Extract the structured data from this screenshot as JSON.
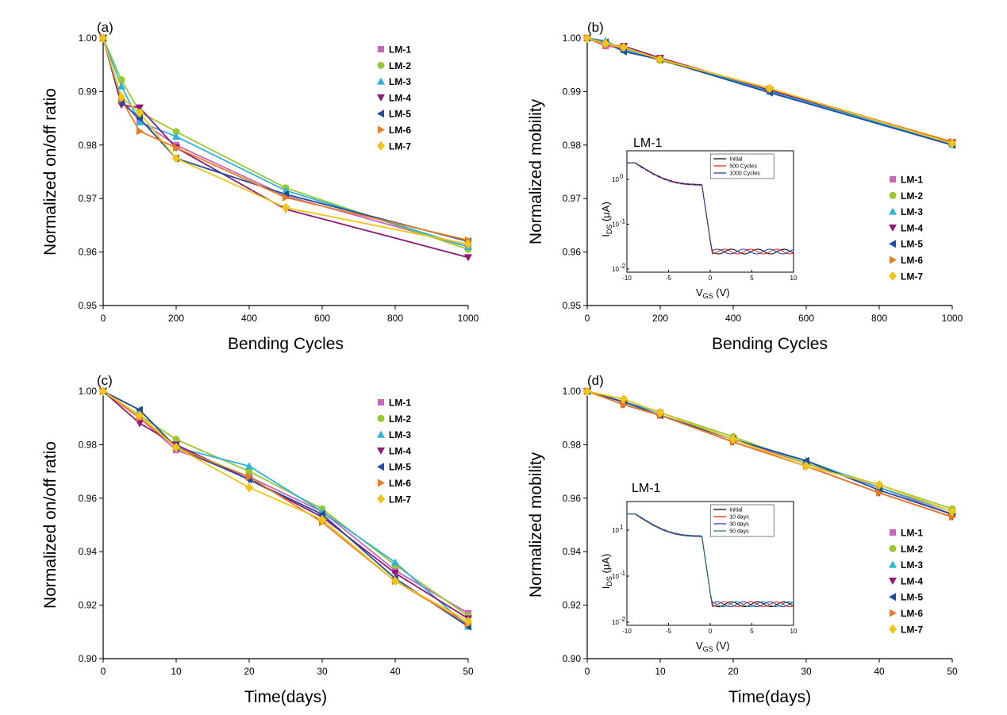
{
  "colors": {
    "LM-1": "#c767b8",
    "LM-2": "#9ac832",
    "LM-3": "#2bb3dd",
    "LM-4": "#8b1a7a",
    "LM-5": "#1f4f9c",
    "LM-6": "#e87c25",
    "LM-7": "#f0c419",
    "inset_lines": [
      "#000000",
      "#e8201a",
      "#1f3b9c",
      "#1f6f8f"
    ]
  },
  "chart_data": [
    {
      "panel": "(a)",
      "type": "line",
      "xlabel": "Bending Cycles",
      "ylabel": "Normalized on/off ratio",
      "xlim": [
        0,
        1000
      ],
      "ylim": [
        0.95,
        1.0
      ],
      "xticks": [
        0,
        200,
        400,
        600,
        800,
        1000
      ],
      "yticks": [
        "0.95",
        "0.96",
        "0.97",
        "0.98",
        "0.99",
        "1.00"
      ],
      "x": [
        0,
        50,
        100,
        200,
        500,
        1000
      ],
      "legend": "top-right",
      "series": [
        {
          "name": "LM-1",
          "marker": "square",
          "values": [
            1.0,
            0.9885,
            0.9845,
            0.98,
            0.9705,
            0.961
          ]
        },
        {
          "name": "LM-2",
          "marker": "circle",
          "values": [
            1.0,
            0.9922,
            0.9862,
            0.9825,
            0.972,
            0.9605
          ]
        },
        {
          "name": "LM-3",
          "marker": "triangle-up",
          "values": [
            1.0,
            0.991,
            0.9843,
            0.9816,
            0.9715,
            0.961
          ]
        },
        {
          "name": "LM-4",
          "marker": "triangle-down",
          "values": [
            1.0,
            0.9875,
            0.987,
            0.9795,
            0.968,
            0.959
          ]
        },
        {
          "name": "LM-5",
          "marker": "triangle-left",
          "values": [
            1.0,
            0.988,
            0.985,
            0.9775,
            0.9708,
            0.962
          ]
        },
        {
          "name": "LM-6",
          "marker": "triangle-right",
          "values": [
            1.0,
            0.9885,
            0.9826,
            0.9795,
            0.9702,
            0.9622
          ]
        },
        {
          "name": "LM-7",
          "marker": "diamond",
          "values": [
            1.0,
            0.989,
            0.986,
            0.9775,
            0.9683,
            0.9615
          ]
        }
      ]
    },
    {
      "panel": "(b)",
      "type": "line",
      "xlabel": "Bending Cycles",
      "ylabel": "Normalized mobility",
      "xlim": [
        0,
        1000
      ],
      "ylim": [
        0.95,
        1.0
      ],
      "xticks": [
        0,
        200,
        400,
        600,
        800,
        1000
      ],
      "yticks": [
        "0.95",
        "0.96",
        "0.97",
        "0.98",
        "0.99",
        "1.00"
      ],
      "x": [
        0,
        50,
        100,
        200,
        500,
        1000
      ],
      "legend": "right",
      "series": [
        {
          "name": "LM-1",
          "marker": "square",
          "values": [
            1.0,
            0.9985,
            0.9982,
            0.9962,
            0.9902,
            0.9803
          ]
        },
        {
          "name": "LM-2",
          "marker": "circle",
          "values": [
            1.0,
            0.999,
            0.998,
            0.9958,
            0.9905,
            0.98
          ]
        },
        {
          "name": "LM-3",
          "marker": "triangle-up",
          "values": [
            1.0,
            0.9995,
            0.9978,
            0.9962,
            0.99,
            0.9802
          ]
        },
        {
          "name": "LM-4",
          "marker": "triangle-down",
          "values": [
            1.0,
            0.9988,
            0.9985,
            0.9963,
            0.9903,
            0.9805
          ]
        },
        {
          "name": "LM-5",
          "marker": "triangle-left",
          "values": [
            1.0,
            0.9992,
            0.9975,
            0.996,
            0.9898,
            0.98
          ]
        },
        {
          "name": "LM-6",
          "marker": "triangle-right",
          "values": [
            1.0,
            0.9987,
            0.9982,
            0.9961,
            0.9905,
            0.9806
          ]
        },
        {
          "name": "LM-7",
          "marker": "diamond",
          "values": [
            1.0,
            0.999,
            0.9983,
            0.996,
            0.9906,
            0.9803
          ]
        }
      ],
      "inset": {
        "title": "LM-1",
        "xlabel_main": "V",
        "xlabel_sub": "GS",
        "xlabel_unit": " (V)",
        "ylabel_main": "I",
        "ylabel_sub": "DS",
        "ylabel_unit": " (μA)",
        "xticks": [
          "-10",
          "-5",
          "0",
          "5",
          "10"
        ],
        "yticks": [
          "10",
          "10",
          "10"
        ],
        "ytick_exps": [
          "0",
          "-1",
          "-2"
        ],
        "legend": [
          "Initial",
          "500 Cycles",
          "1000 Cycles"
        ]
      }
    },
    {
      "panel": "(c)",
      "type": "line",
      "xlabel": "Time(days)",
      "ylabel": "Normalized on/off ratio",
      "xlim": [
        0,
        50
      ],
      "ylim": [
        0.9,
        1.0
      ],
      "xticks": [
        0,
        10,
        20,
        30,
        40,
        50
      ],
      "yticks": [
        "0.90",
        "0.92",
        "0.94",
        "0.96",
        "0.98",
        "1.00"
      ],
      "x": [
        0,
        5,
        10,
        20,
        30,
        40,
        50
      ],
      "legend": "top-right",
      "series": [
        {
          "name": "LM-1",
          "marker": "square",
          "values": [
            1.0,
            0.99,
            0.978,
            0.968,
            0.955,
            0.933,
            0.917
          ]
        },
        {
          "name": "LM-2",
          "marker": "circle",
          "values": [
            1.0,
            0.991,
            0.982,
            0.97,
            0.956,
            0.935,
            0.916
          ]
        },
        {
          "name": "LM-3",
          "marker": "triangle-up",
          "values": [
            1.0,
            0.993,
            0.979,
            0.972,
            0.955,
            0.936,
            0.912
          ]
        },
        {
          "name": "LM-4",
          "marker": "triangle-down",
          "values": [
            1.0,
            0.988,
            0.98,
            0.967,
            0.953,
            0.932,
            0.915
          ]
        },
        {
          "name": "LM-5",
          "marker": "triangle-left",
          "values": [
            1.0,
            0.993,
            0.979,
            0.967,
            0.954,
            0.93,
            0.912
          ]
        },
        {
          "name": "LM-6",
          "marker": "triangle-right",
          "values": [
            1.0,
            0.99,
            0.979,
            0.968,
            0.951,
            0.929,
            0.913
          ]
        },
        {
          "name": "LM-7",
          "marker": "diamond",
          "values": [
            1.0,
            0.991,
            0.979,
            0.964,
            0.952,
            0.929,
            0.914
          ]
        }
      ]
    },
    {
      "panel": "(d)",
      "type": "line",
      "xlabel": "Time(days)",
      "ylabel": "Normalized mobility",
      "xlim": [
        0,
        50
      ],
      "ylim": [
        0.9,
        1.0
      ],
      "xticks": [
        0,
        10,
        20,
        30,
        40,
        50
      ],
      "yticks": [
        "0.90",
        "0.92",
        "0.94",
        "0.96",
        "0.98",
        "1.00"
      ],
      "x": [
        0,
        5,
        10,
        20,
        30,
        40,
        50
      ],
      "legend": "right",
      "series": [
        {
          "name": "LM-1",
          "marker": "square",
          "values": [
            1.0,
            0.996,
            0.992,
            0.982,
            0.973,
            0.964,
            0.954
          ]
        },
        {
          "name": "LM-2",
          "marker": "circle",
          "values": [
            1.0,
            0.997,
            0.992,
            0.983,
            0.973,
            0.965,
            0.956
          ]
        },
        {
          "name": "LM-3",
          "marker": "triangle-up",
          "values": [
            1.0,
            0.996,
            0.992,
            0.982,
            0.974,
            0.964,
            0.955
          ]
        },
        {
          "name": "LM-4",
          "marker": "triangle-down",
          "values": [
            1.0,
            0.995,
            0.991,
            0.981,
            0.972,
            0.962,
            0.953
          ]
        },
        {
          "name": "LM-5",
          "marker": "triangle-left",
          "values": [
            1.0,
            0.996,
            0.991,
            0.982,
            0.974,
            0.963,
            0.954
          ]
        },
        {
          "name": "LM-6",
          "marker": "triangle-right",
          "values": [
            1.0,
            0.995,
            0.991,
            0.981,
            0.972,
            0.962,
            0.953
          ]
        },
        {
          "name": "LM-7",
          "marker": "diamond",
          "values": [
            1.0,
            0.997,
            0.992,
            0.982,
            0.972,
            0.965,
            0.955
          ]
        }
      ],
      "inset": {
        "title": "LM-1",
        "xlabel_main": "V",
        "xlabel_sub": "GS",
        "xlabel_unit": " (V)",
        "ylabel_main": "I",
        "ylabel_sub": "DS",
        "ylabel_unit": " (μA)",
        "xticks": [
          "-10",
          "-5",
          "0",
          "5",
          "10"
        ],
        "yticks": [
          "10",
          "10",
          "10"
        ],
        "ytick_exps": [
          "1",
          "-1",
          "-2"
        ],
        "legend": [
          "Initial",
          "10 days",
          "30 days",
          "50 days"
        ]
      }
    }
  ]
}
